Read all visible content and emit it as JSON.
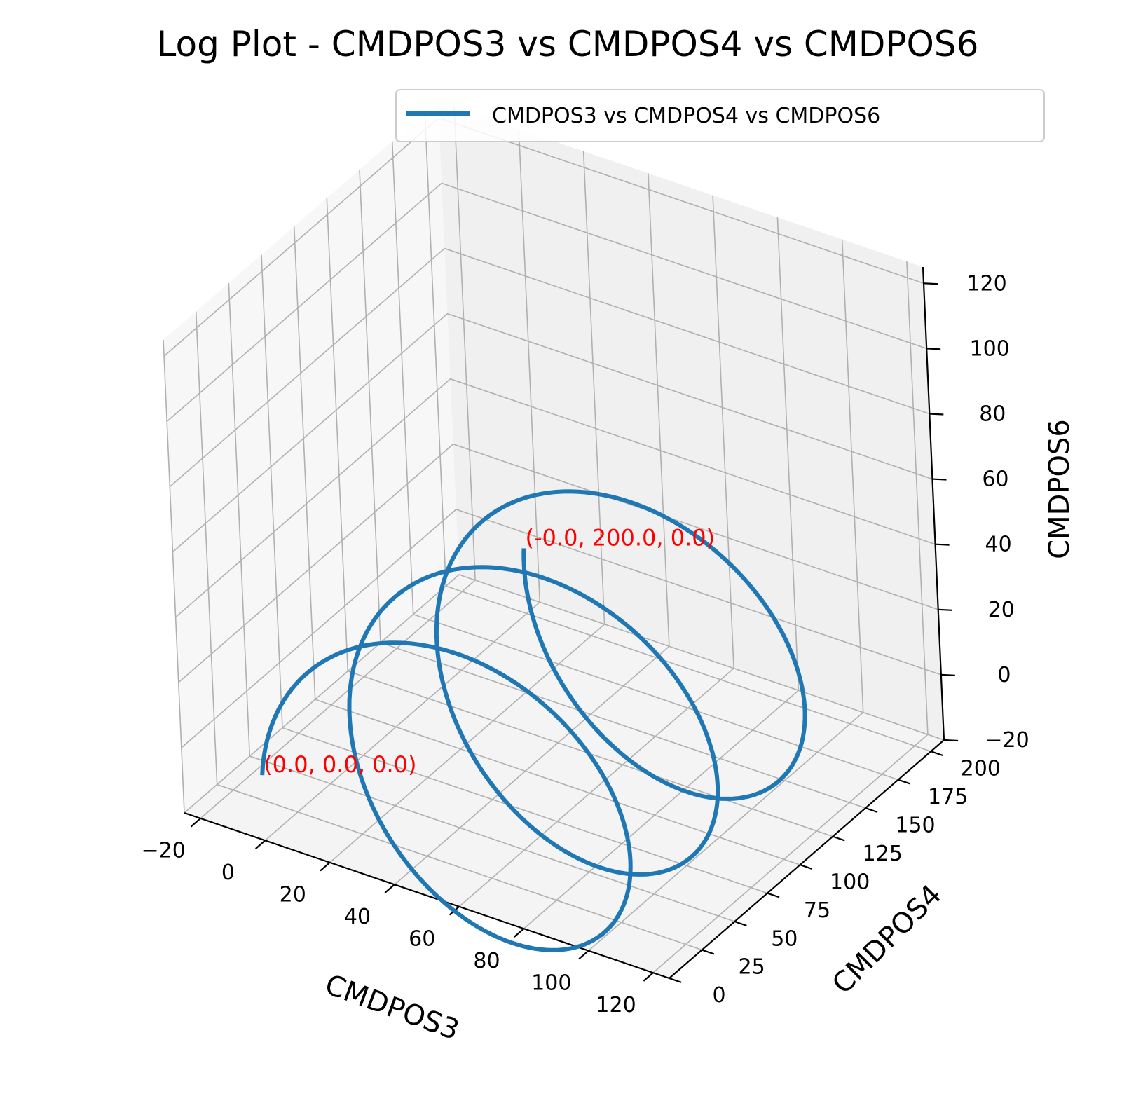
{
  "chart_data": {
    "type": "line",
    "projection": "3d",
    "title": "Log Plot - CMDPOS3 vs CMDPOS4 vs CMDPOS6",
    "xlabel": "CMDPOS3",
    "ylabel": "CMDPOS4",
    "zlabel": "CMDPOS6",
    "xlim": [
      -25,
      125
    ],
    "ylim": [
      0,
      210
    ],
    "zlim": [
      -20,
      125
    ],
    "xticks": [
      -20,
      0,
      20,
      40,
      60,
      80,
      100,
      120
    ],
    "yticks": [
      0,
      25,
      50,
      75,
      100,
      125,
      150,
      175,
      200
    ],
    "zticks": [
      -20,
      0,
      20,
      40,
      60,
      80,
      100,
      120
    ],
    "xtick_labels": [
      "−20",
      "0",
      "20",
      "40",
      "60",
      "80",
      "100",
      "120"
    ],
    "ytick_labels": [
      "0",
      "25",
      "50",
      "75",
      "100",
      "125",
      "150",
      "175",
      "200"
    ],
    "ztick_labels": [
      "−20",
      "0",
      "20",
      "40",
      "60",
      "80",
      "100",
      "120"
    ],
    "grid": true,
    "legend_position": "top-right",
    "series": [
      {
        "name": "CMDPOS3 vs CMDPOS4 vs CMDPOS6",
        "color": "#1f77b4",
        "description": "helix: x=50-50cos(t), y=200t/(6pi), z=50 sin(t), t from 0 to 6pi",
        "points_xyz": [
          [
            0.0,
            0.0,
            0.0
          ],
          [
            3.4,
            8.3,
            18.3
          ],
          [
            12.5,
            16.7,
            33.1
          ],
          [
            25.0,
            25.0,
            43.3
          ],
          [
            39.6,
            33.3,
            49.2
          ],
          [
            54.3,
            41.7,
            49.8
          ],
          [
            67.9,
            50.0,
            47.0
          ],
          [
            80.3,
            58.3,
            39.7
          ],
          [
            90.8,
            66.7,
            28.9
          ],
          [
            97.7,
            75.0,
            15.3
          ],
          [
            100.0,
            83.3,
            0.0
          ],
          [
            97.7,
            91.7,
            -15.3
          ],
          [
            90.8,
            100.0,
            -28.9
          ],
          [
            80.3,
            108.3,
            -39.7
          ],
          [
            67.9,
            116.7,
            -47.0
          ],
          [
            54.3,
            125.0,
            -49.8
          ],
          [
            39.6,
            133.3,
            -49.2
          ],
          [
            25.0,
            141.7,
            -43.3
          ],
          [
            12.5,
            150.0,
            -33.1
          ],
          [
            3.4,
            158.3,
            -18.3
          ],
          [
            0.0,
            166.7,
            0.0
          ],
          [
            3.4,
            175.0,
            18.3
          ],
          [
            12.5,
            183.3,
            33.1
          ],
          [
            25.0,
            191.7,
            43.3
          ],
          [
            0.0,
            200.0,
            0.0
          ]
        ]
      }
    ],
    "annotations": [
      {
        "text": "(0.0, 0.0, 0.0)",
        "at": [
          0.0,
          0.0,
          0.0
        ]
      },
      {
        "text": "(-0.0, 200.0, 0.0)",
        "at": [
          0.0,
          200.0,
          0.0
        ]
      }
    ]
  }
}
